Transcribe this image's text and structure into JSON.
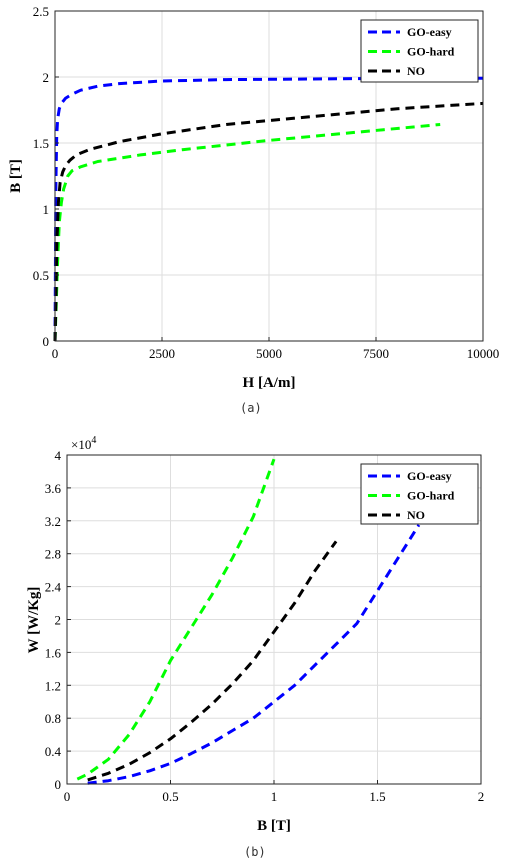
{
  "chart_data": [
    {
      "type": "line",
      "caption": "(a)",
      "xlabel": "H [A/m]",
      "ylabel": "B [T]",
      "xlim": [
        0,
        10000
      ],
      "ylim": [
        0,
        2.5
      ],
      "xticks": [
        0,
        2500,
        5000,
        7500,
        10000
      ],
      "yticks": [
        0,
        0.5,
        1,
        1.5,
        2,
        2.5
      ],
      "xtick_labels": [
        "0",
        "2500",
        "5000",
        "7500",
        "10000"
      ],
      "ytick_labels": [
        "0",
        "0.5",
        "1",
        "1.5",
        "2",
        "2.5"
      ],
      "grid": true,
      "legend_position": "top-right",
      "series": [
        {
          "name": "GO-easy",
          "color": "#0000ff",
          "x": [
            0,
            20,
            40,
            60,
            100,
            150,
            250,
            400,
            600,
            1000,
            1500,
            2500,
            4000,
            6000,
            8000,
            10000
          ],
          "y": [
            0,
            1.2,
            1.55,
            1.68,
            1.76,
            1.8,
            1.84,
            1.87,
            1.9,
            1.93,
            1.95,
            1.97,
            1.98,
            1.985,
            1.99,
            1.99
          ]
        },
        {
          "name": "GO-hard",
          "color": "#00ff00",
          "x": [
            0,
            30,
            60,
            100,
            150,
            200,
            300,
            400,
            600,
            1000,
            2000,
            3000,
            5000,
            7000,
            9000
          ],
          "y": [
            0,
            0.3,
            0.6,
            0.9,
            1.05,
            1.15,
            1.25,
            1.29,
            1.32,
            1.36,
            1.41,
            1.45,
            1.52,
            1.58,
            1.64
          ]
        },
        {
          "name": "NO",
          "color": "#000000",
          "x": [
            0,
            20,
            40,
            80,
            120,
            180,
            250,
            350,
            500,
            800,
            1500,
            2500,
            4000,
            6000,
            8000,
            10000
          ],
          "y": [
            0,
            0.3,
            0.7,
            1.05,
            1.2,
            1.28,
            1.33,
            1.37,
            1.41,
            1.45,
            1.51,
            1.57,
            1.64,
            1.7,
            1.76,
            1.8
          ]
        }
      ]
    },
    {
      "type": "line",
      "caption": "(b)",
      "xlabel": "B [T]",
      "ylabel": "W [W/Kg]",
      "exponent_label": "×10",
      "exponent_power": "4",
      "y_scale_factor": 10000,
      "xlim": [
        0,
        2
      ],
      "ylim": [
        0,
        40000
      ],
      "xticks": [
        0,
        0.5,
        1,
        1.5,
        2
      ],
      "yticks": [
        0,
        4000,
        8000,
        12000,
        16000,
        20000,
        24000,
        28000,
        32000,
        36000,
        40000
      ],
      "xtick_labels": [
        "0",
        "0.5",
        "1",
        "1.5",
        "2"
      ],
      "ytick_labels": [
        "0",
        "0.4",
        "0.8",
        "1.2",
        "1.6",
        "2",
        "2.4",
        "2.8",
        "3.2",
        "3.6",
        "4"
      ],
      "grid": true,
      "legend_position": "top-right",
      "series": [
        {
          "name": "GO-easy",
          "color": "#0000ff",
          "x": [
            0.1,
            0.2,
            0.3,
            0.4,
            0.5,
            0.6,
            0.7,
            0.8,
            0.9,
            1.0,
            1.1,
            1.2,
            1.3,
            1.4,
            1.5,
            1.6,
            1.7
          ],
          "y": [
            100,
            400,
            900,
            1600,
            2500,
            3700,
            5000,
            6500,
            8000,
            10000,
            12000,
            14500,
            17000,
            19500,
            23500,
            27500,
            31500
          ]
        },
        {
          "name": "GO-hard",
          "color": "#00ff00",
          "x": [
            0.05,
            0.1,
            0.2,
            0.3,
            0.4,
            0.5,
            0.6,
            0.7,
            0.8,
            0.9,
            1.0
          ],
          "y": [
            600,
            1200,
            3000,
            6000,
            10000,
            15000,
            19000,
            23000,
            27500,
            32500,
            39500
          ]
        },
        {
          "name": "NO",
          "color": "#000000",
          "x": [
            0.1,
            0.2,
            0.3,
            0.4,
            0.5,
            0.6,
            0.7,
            0.8,
            0.9,
            1.0,
            1.1,
            1.2,
            1.3
          ],
          "y": [
            500,
            1300,
            2400,
            3800,
            5500,
            7500,
            9700,
            12200,
            15000,
            18500,
            22000,
            26000,
            29500
          ]
        }
      ]
    }
  ]
}
